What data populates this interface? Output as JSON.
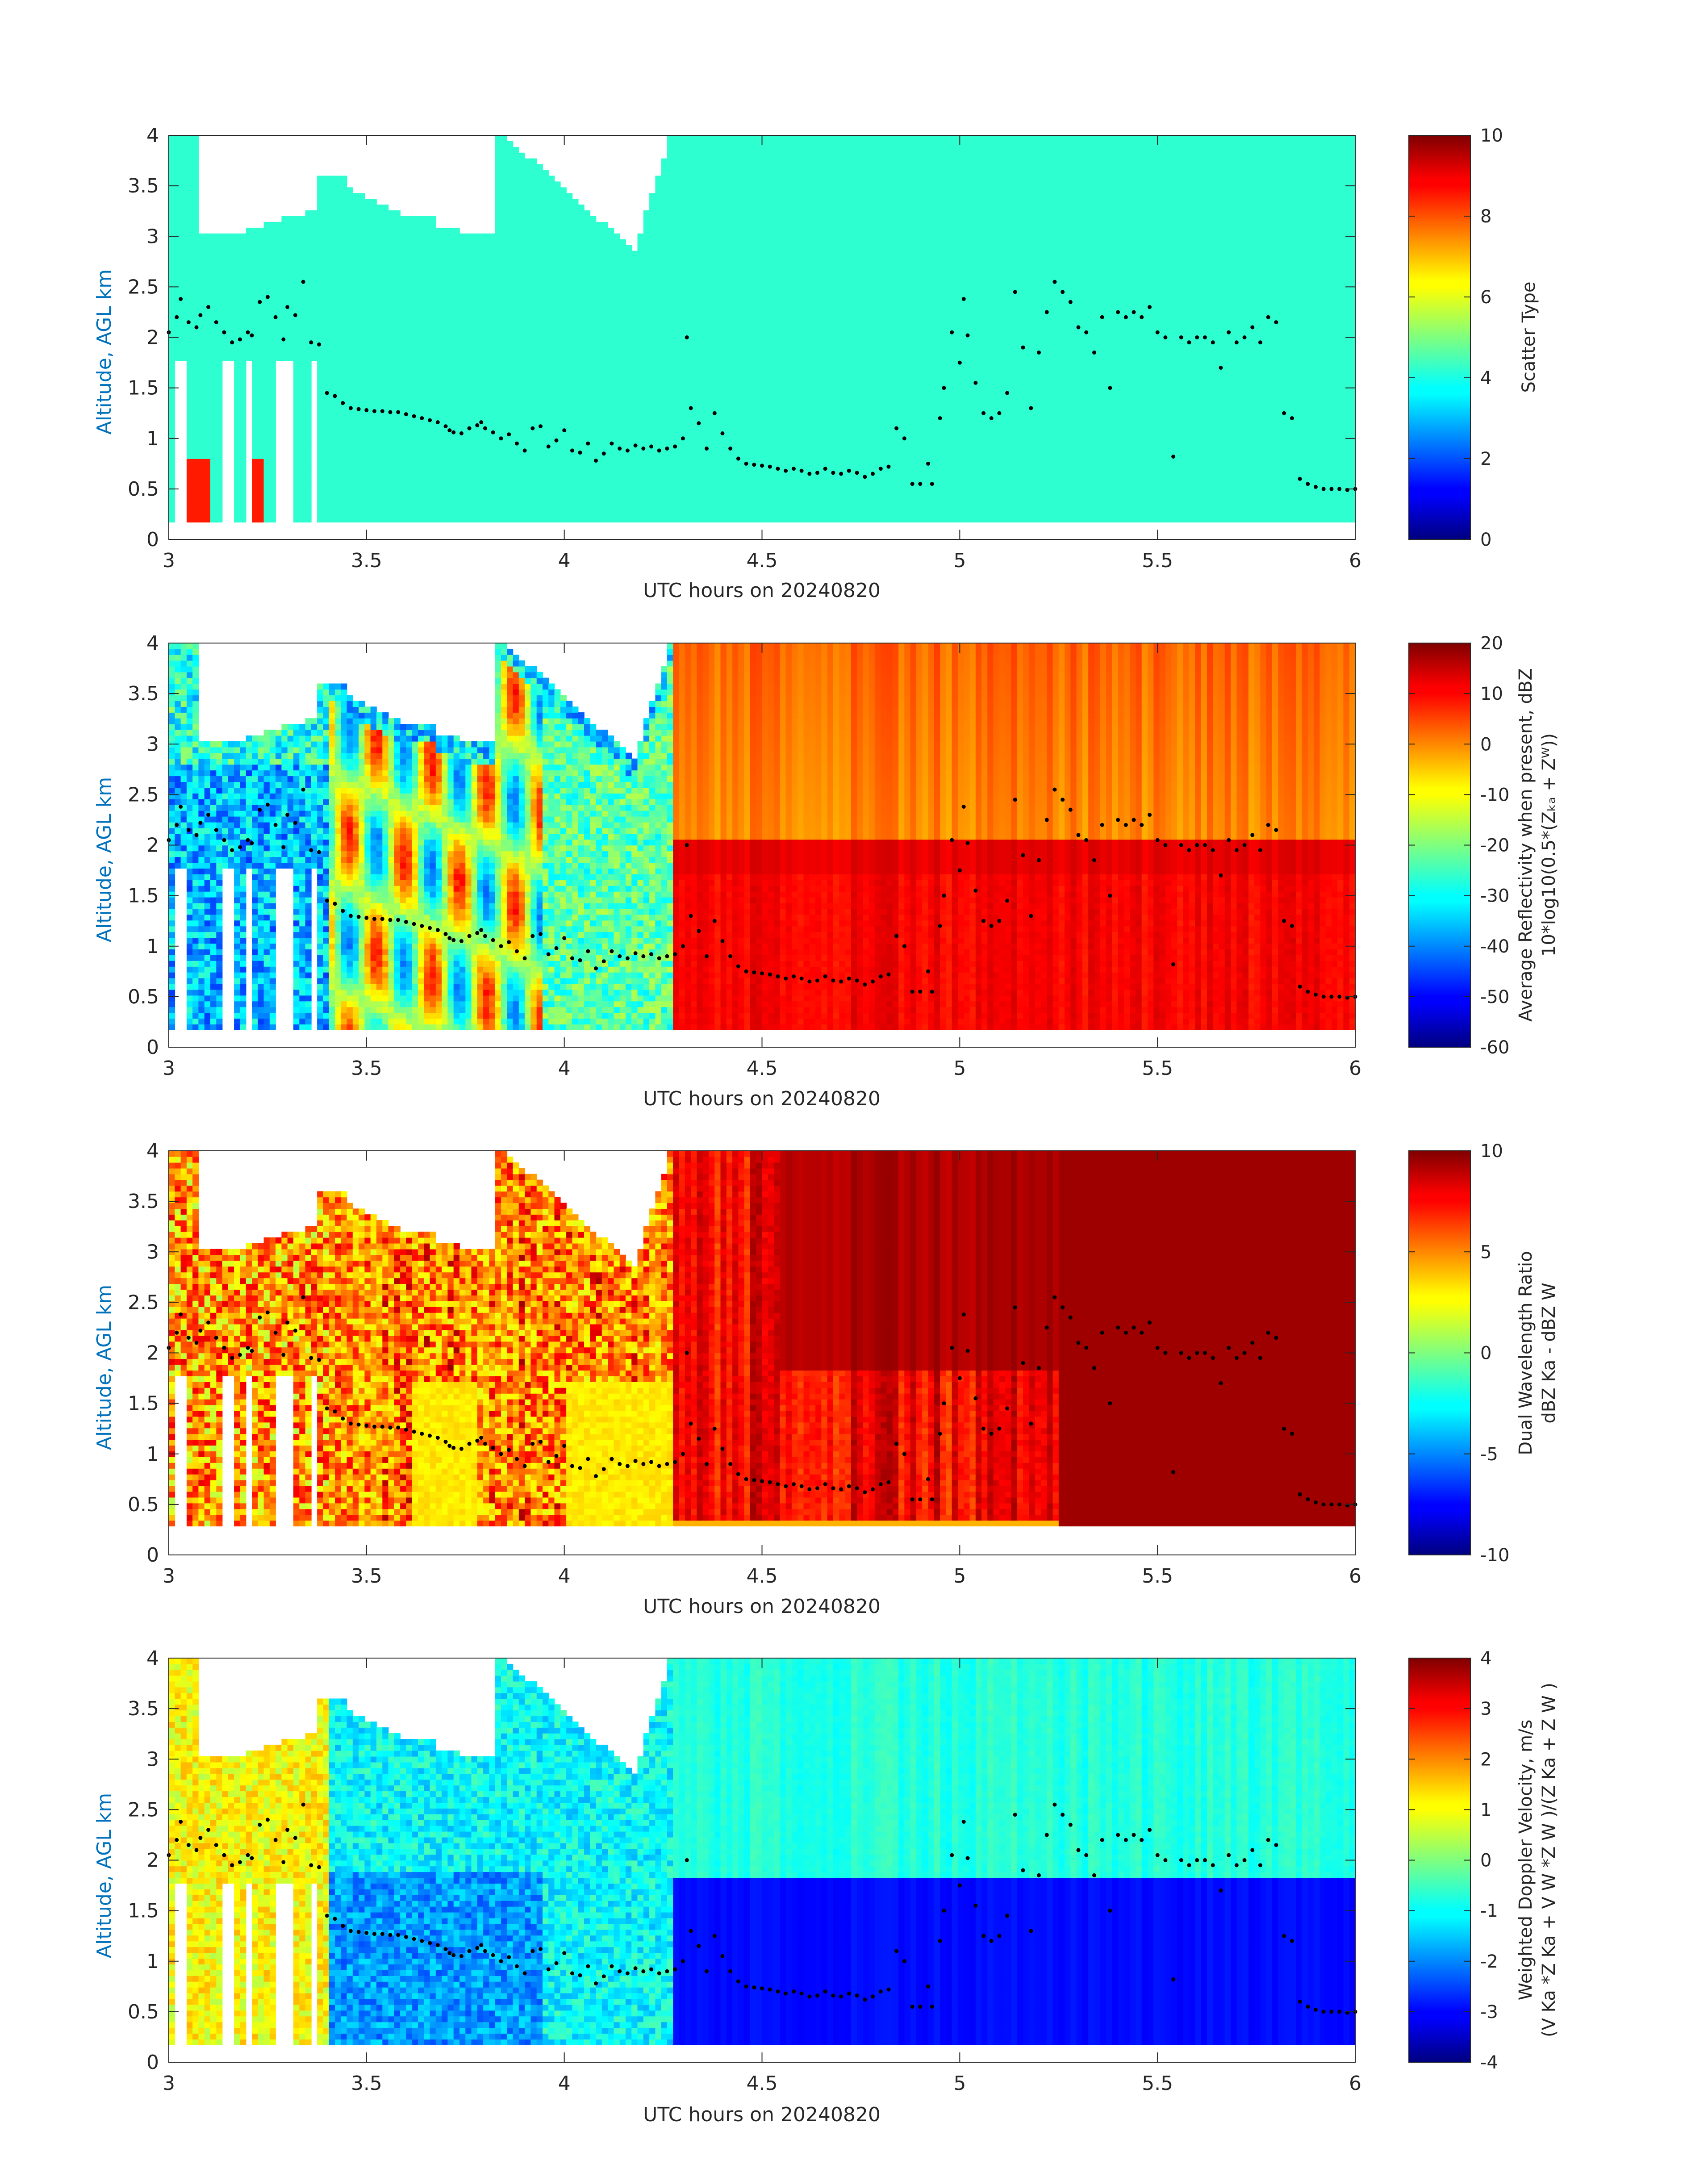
{
  "chart_data": [
    {
      "type": "heatmap",
      "panel": 1,
      "xlabel": "UTC hours on 20240820",
      "ylabel": "Altitude, AGL km",
      "xlim": [
        3,
        6
      ],
      "ylim": [
        0,
        4
      ],
      "xticks": [
        "3",
        "3.5",
        "4",
        "4.5",
        "5",
        "5.5",
        "6"
      ],
      "yticks": [
        "0",
        "0.5",
        "1",
        "1.5",
        "2",
        "2.5",
        "3",
        "3.5",
        "4"
      ],
      "colorbar": {
        "label": "Scatter Type",
        "label_line2": "",
        "range": [
          0,
          10
        ],
        "ticks": [
          "0",
          "2",
          "4",
          "6",
          "8",
          "10"
        ]
      },
      "field": "scatter"
    },
    {
      "type": "heatmap",
      "panel": 2,
      "xlabel": "UTC hours on 20240820",
      "ylabel": "Altitude, AGL km",
      "xlim": [
        3,
        6
      ],
      "ylim": [
        0,
        4
      ],
      "xticks": [
        "3",
        "3.5",
        "4",
        "4.5",
        "5",
        "5.5",
        "6"
      ],
      "yticks": [
        "0",
        "0.5",
        "1",
        "1.5",
        "2",
        "2.5",
        "3",
        "3.5",
        "4"
      ],
      "colorbar": {
        "label": "Average Reflectivity when present, dBZ",
        "label_line2": "10*log10(0.5*(Zₖₐ + Zᵂ))",
        "range": [
          -60,
          20
        ],
        "ticks": [
          "-60",
          "-50",
          "-40",
          "-30",
          "-20",
          "-10",
          "0",
          "10",
          "20"
        ]
      },
      "field": "reflectivity"
    },
    {
      "type": "heatmap",
      "panel": 3,
      "xlabel": "UTC hours on 20240820",
      "ylabel": "Altitude, AGL km",
      "xlim": [
        3,
        6
      ],
      "ylim": [
        0,
        4
      ],
      "xticks": [
        "3",
        "3.5",
        "4",
        "4.5",
        "5",
        "5.5",
        "6"
      ],
      "yticks": [
        "0",
        "0.5",
        "1",
        "1.5",
        "2",
        "2.5",
        "3",
        "3.5",
        "4"
      ],
      "colorbar": {
        "label": "Dual Wavelength Ratio",
        "label_line2": "dBZ Ka - dBZ W",
        "range": [
          -10,
          10
        ],
        "ticks": [
          "-10",
          "-5",
          "0",
          "5",
          "10"
        ]
      },
      "field": "dwr"
    },
    {
      "type": "heatmap",
      "panel": 4,
      "xlabel": "UTC hours on 20240820",
      "ylabel": "Altitude, AGL km",
      "xlim": [
        3,
        6
      ],
      "ylim": [
        0,
        4
      ],
      "xticks": [
        "3",
        "3.5",
        "4",
        "4.5",
        "5",
        "5.5",
        "6"
      ],
      "yticks": [
        "0",
        "0.5",
        "1",
        "1.5",
        "2",
        "2.5",
        "3",
        "3.5",
        "4"
      ],
      "colorbar": {
        "label": "Weighted Doppler Velocity, m/s",
        "label_line2": "(V Ka *Z Ka + V W *Z W )/(Z Ka + Z W )",
        "range": [
          -4,
          4
        ],
        "ticks": [
          "-4",
          "-3",
          "-2",
          "-1",
          "0",
          "1",
          "2",
          "3",
          "4"
        ]
      },
      "field": "velocity"
    }
  ],
  "overlay": {
    "points_km": [
      [
        3.0,
        2.05
      ],
      [
        3.02,
        2.2
      ],
      [
        3.03,
        2.38
      ],
      [
        3.05,
        2.15
      ],
      [
        3.07,
        2.1
      ],
      [
        3.08,
        2.22
      ],
      [
        3.1,
        2.3
      ],
      [
        3.12,
        2.15
      ],
      [
        3.14,
        2.05
      ],
      [
        3.16,
        1.95
      ],
      [
        3.18,
        1.98
      ],
      [
        3.2,
        2.05
      ],
      [
        3.21,
        2.02
      ],
      [
        3.23,
        2.35
      ],
      [
        3.25,
        2.4
      ],
      [
        3.27,
        2.2
      ],
      [
        3.29,
        1.98
      ],
      [
        3.3,
        2.3
      ],
      [
        3.32,
        2.22
      ],
      [
        3.34,
        2.55
      ],
      [
        3.36,
        1.95
      ],
      [
        3.38,
        1.93
      ],
      [
        3.4,
        1.45
      ],
      [
        3.42,
        1.42
      ],
      [
        3.44,
        1.35
      ],
      [
        3.46,
        1.3
      ],
      [
        3.48,
        1.29
      ],
      [
        3.5,
        1.28
      ],
      [
        3.52,
        1.27
      ],
      [
        3.54,
        1.27
      ],
      [
        3.56,
        1.26
      ],
      [
        3.58,
        1.26
      ],
      [
        3.6,
        1.24
      ],
      [
        3.62,
        1.22
      ],
      [
        3.64,
        1.2
      ],
      [
        3.66,
        1.18
      ],
      [
        3.68,
        1.16
      ],
      [
        3.7,
        1.12
      ],
      [
        3.71,
        1.08
      ],
      [
        3.72,
        1.06
      ],
      [
        3.74,
        1.05
      ],
      [
        3.76,
        1.1
      ],
      [
        3.78,
        1.13
      ],
      [
        3.79,
        1.16
      ],
      [
        3.8,
        1.1
      ],
      [
        3.82,
        1.06
      ],
      [
        3.84,
        1.0
      ],
      [
        3.86,
        1.04
      ],
      [
        3.88,
        0.95
      ],
      [
        3.9,
        0.88
      ],
      [
        3.92,
        1.1
      ],
      [
        3.94,
        1.12
      ],
      [
        3.96,
        0.92
      ],
      [
        3.98,
        0.98
      ],
      [
        4.0,
        1.08
      ],
      [
        4.02,
        0.88
      ],
      [
        4.04,
        0.86
      ],
      [
        4.06,
        0.95
      ],
      [
        4.08,
        0.78
      ],
      [
        4.1,
        0.85
      ],
      [
        4.12,
        0.95
      ],
      [
        4.14,
        0.9
      ],
      [
        4.16,
        0.88
      ],
      [
        4.18,
        0.93
      ],
      [
        4.2,
        0.9
      ],
      [
        4.22,
        0.92
      ],
      [
        4.24,
        0.88
      ],
      [
        4.26,
        0.9
      ],
      [
        4.28,
        0.92
      ],
      [
        4.3,
        1.0
      ],
      [
        4.31,
        2.0
      ],
      [
        4.32,
        1.3
      ],
      [
        4.34,
        1.15
      ],
      [
        4.36,
        0.9
      ],
      [
        4.38,
        1.25
      ],
      [
        4.4,
        1.05
      ],
      [
        4.42,
        0.9
      ],
      [
        4.44,
        0.8
      ],
      [
        4.46,
        0.75
      ],
      [
        4.48,
        0.74
      ],
      [
        4.5,
        0.73
      ],
      [
        4.52,
        0.72
      ],
      [
        4.54,
        0.7
      ],
      [
        4.56,
        0.68
      ],
      [
        4.58,
        0.7
      ],
      [
        4.6,
        0.68
      ],
      [
        4.62,
        0.65
      ],
      [
        4.64,
        0.66
      ],
      [
        4.66,
        0.7
      ],
      [
        4.68,
        0.66
      ],
      [
        4.7,
        0.65
      ],
      [
        4.72,
        0.68
      ],
      [
        4.74,
        0.66
      ],
      [
        4.76,
        0.62
      ],
      [
        4.78,
        0.65
      ],
      [
        4.8,
        0.7
      ],
      [
        4.82,
        0.72
      ],
      [
        4.84,
        1.1
      ],
      [
        4.86,
        1.0
      ],
      [
        4.88,
        0.55
      ],
      [
        4.9,
        0.55
      ],
      [
        4.92,
        0.75
      ],
      [
        4.93,
        0.55
      ],
      [
        4.95,
        1.2
      ],
      [
        4.96,
        1.5
      ],
      [
        4.98,
        2.05
      ],
      [
        5.0,
        1.75
      ],
      [
        5.01,
        2.38
      ],
      [
        5.02,
        2.02
      ],
      [
        5.04,
        1.55
      ],
      [
        5.06,
        1.25
      ],
      [
        5.08,
        1.2
      ],
      [
        5.1,
        1.25
      ],
      [
        5.12,
        1.45
      ],
      [
        5.14,
        2.45
      ],
      [
        5.16,
        1.9
      ],
      [
        5.18,
        1.3
      ],
      [
        5.2,
        1.85
      ],
      [
        5.22,
        2.25
      ],
      [
        5.24,
        2.55
      ],
      [
        5.26,
        2.45
      ],
      [
        5.28,
        2.35
      ],
      [
        5.3,
        2.1
      ],
      [
        5.32,
        2.05
      ],
      [
        5.34,
        1.85
      ],
      [
        5.36,
        2.2
      ],
      [
        5.38,
        1.5
      ],
      [
        5.4,
        2.25
      ],
      [
        5.42,
        2.2
      ],
      [
        5.44,
        2.25
      ],
      [
        5.46,
        2.2
      ],
      [
        5.48,
        2.3
      ],
      [
        5.5,
        2.05
      ],
      [
        5.52,
        2.0
      ],
      [
        5.54,
        0.82
      ],
      [
        5.56,
        2.0
      ],
      [
        5.58,
        1.95
      ],
      [
        5.6,
        2.0
      ],
      [
        5.62,
        2.0
      ],
      [
        5.64,
        1.95
      ],
      [
        5.66,
        1.7
      ],
      [
        5.68,
        2.05
      ],
      [
        5.7,
        1.95
      ],
      [
        5.72,
        2.0
      ],
      [
        5.74,
        2.1
      ],
      [
        5.76,
        1.95
      ],
      [
        5.78,
        2.2
      ],
      [
        5.8,
        2.15
      ],
      [
        5.82,
        1.25
      ],
      [
        5.84,
        1.2
      ],
      [
        5.86,
        0.6
      ],
      [
        5.88,
        0.55
      ],
      [
        5.9,
        0.52
      ],
      [
        5.92,
        0.5
      ],
      [
        5.94,
        0.5
      ],
      [
        5.96,
        0.5
      ],
      [
        5.98,
        0.49
      ],
      [
        6.0,
        0.5
      ]
    ]
  }
}
